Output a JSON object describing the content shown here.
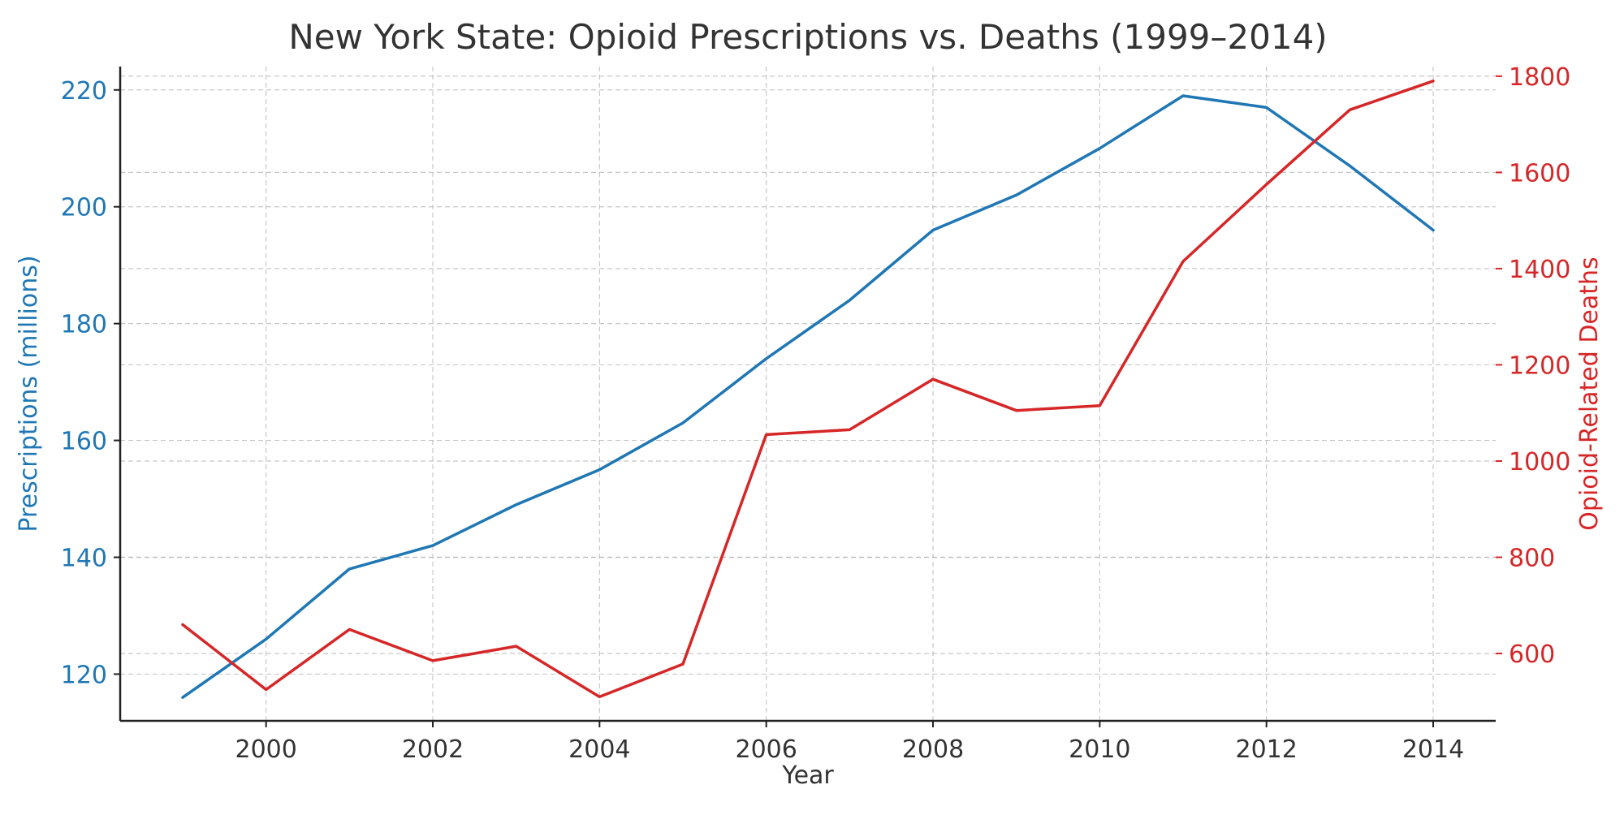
{
  "chart_data": {
    "type": "line",
    "title": "New York State: Opioid Prescriptions vs. Deaths (1999–2014)",
    "xlabel": "Year",
    "ylabel_left": "Prescriptions (millions)",
    "ylabel_right": "Opioid-Related Deaths",
    "x": [
      1999,
      2000,
      2001,
      2002,
      2003,
      2004,
      2005,
      2006,
      2007,
      2008,
      2009,
      2010,
      2011,
      2012,
      2013,
      2014
    ],
    "xlim": [
      1998.25,
      2014.75
    ],
    "x_ticks": [
      "2000",
      "2002",
      "2004",
      "2006",
      "2008",
      "2010",
      "2012",
      "2014"
    ],
    "ylim_left": [
      112,
      224
    ],
    "ylim_right": [
      460,
      1820
    ],
    "y_ticks_left": [
      "120",
      "140",
      "160",
      "180",
      "200",
      "220"
    ],
    "y_ticks_right": [
      "600",
      "800",
      "1000",
      "1200",
      "1400",
      "1600",
      "1800"
    ],
    "grid": true,
    "series": [
      {
        "axis": "left",
        "color": "#1f77b4",
        "values": [
          116,
          126,
          138,
          142,
          149,
          155,
          163,
          174,
          184,
          196,
          202,
          210,
          219,
          217,
          207,
          196
        ]
      },
      {
        "axis": "right",
        "color": "#d62728",
        "values": [
          660,
          525,
          650,
          585,
          615,
          510,
          578,
          1055,
          1065,
          1170,
          1105,
          1115,
          1415,
          1575,
          1730,
          1790
        ]
      }
    ]
  }
}
